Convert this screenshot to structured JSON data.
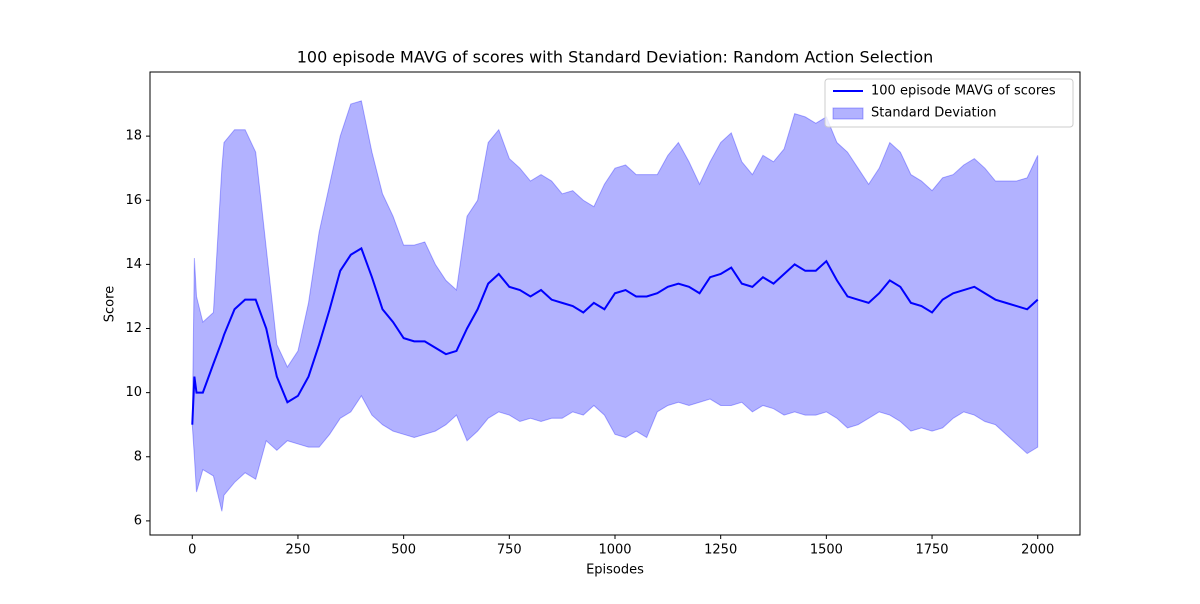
{
  "chart_data": {
    "type": "line_band",
    "title": "100 episode MAVG of scores with Standard Deviation: Random Action Selection",
    "xlabel": "Episodes",
    "ylabel": "Score",
    "x": [
      0,
      5,
      10,
      25,
      50,
      70,
      75,
      100,
      125,
      150,
      175,
      200,
      225,
      250,
      275,
      300,
      325,
      350,
      375,
      400,
      425,
      450,
      475,
      500,
      525,
      550,
      575,
      600,
      625,
      650,
      675,
      700,
      725,
      750,
      775,
      800,
      825,
      850,
      875,
      900,
      925,
      950,
      975,
      1000,
      1025,
      1050,
      1075,
      1100,
      1125,
      1150,
      1175,
      1200,
      1225,
      1250,
      1275,
      1300,
      1325,
      1350,
      1375,
      1400,
      1425,
      1450,
      1475,
      1500,
      1525,
      1550,
      1575,
      1600,
      1625,
      1650,
      1675,
      1700,
      1725,
      1750,
      1775,
      1800,
      1825,
      1850,
      1875,
      1900,
      1925,
      1950,
      1975,
      2000
    ],
    "series": [
      {
        "name": "100 episode MAVG of scores",
        "color": "#0000ff",
        "values": [
          9.0,
          10.5,
          10.0,
          10.0,
          10.9,
          11.6,
          11.8,
          12.6,
          12.9,
          12.9,
          12.0,
          10.5,
          9.7,
          9.9,
          10.5,
          11.5,
          12.6,
          13.8,
          14.3,
          14.5,
          13.6,
          12.6,
          12.2,
          11.7,
          11.6,
          11.6,
          11.4,
          11.2,
          11.3,
          12.0,
          12.6,
          13.4,
          13.7,
          13.3,
          13.2,
          13.0,
          13.2,
          12.9,
          12.8,
          12.7,
          12.5,
          12.8,
          12.6,
          13.1,
          13.2,
          13.0,
          13.0,
          13.1,
          13.3,
          13.4,
          13.3,
          13.1,
          13.6,
          13.7,
          13.9,
          13.4,
          13.3,
          13.6,
          13.4,
          13.7,
          14.0,
          13.8,
          13.8,
          14.1,
          13.5,
          13.0,
          12.9,
          12.8,
          13.1,
          13.5,
          13.3,
          12.8,
          12.7,
          12.5,
          12.9,
          13.1,
          13.2,
          13.3,
          13.1,
          12.9,
          12.8,
          12.7,
          12.6,
          12.9
        ]
      },
      {
        "name": "Standard Deviation",
        "color": "#0000ff",
        "upper": [
          9.0,
          14.2,
          13.0,
          12.2,
          12.5,
          17.0,
          17.8,
          18.2,
          18.2,
          17.5,
          14.5,
          11.5,
          10.8,
          11.3,
          12.8,
          15.0,
          16.5,
          18.0,
          19.0,
          19.1,
          17.5,
          16.2,
          15.5,
          14.6,
          14.6,
          14.7,
          14.0,
          13.5,
          13.2,
          15.5,
          16.0,
          17.8,
          18.2,
          17.3,
          17.0,
          16.6,
          16.8,
          16.6,
          16.2,
          16.3,
          16.0,
          15.8,
          16.5,
          17.0,
          17.1,
          16.8,
          16.8,
          16.8,
          17.4,
          17.8,
          17.2,
          16.5,
          17.2,
          17.8,
          18.1,
          17.2,
          16.8,
          17.4,
          17.2,
          17.6,
          18.7,
          18.6,
          18.4,
          18.6,
          17.8,
          17.5,
          17.0,
          16.5,
          17.0,
          17.8,
          17.5,
          16.8,
          16.6,
          16.3,
          16.7,
          16.8,
          17.1,
          17.3,
          17.0,
          16.6,
          16.6,
          16.6,
          16.7,
          17.4
        ],
        "lower": [
          9.0,
          8.0,
          6.9,
          7.6,
          7.4,
          6.3,
          6.8,
          7.2,
          7.5,
          7.3,
          8.5,
          8.2,
          8.5,
          8.4,
          8.3,
          8.3,
          8.7,
          9.2,
          9.4,
          9.9,
          9.3,
          9.0,
          8.8,
          8.7,
          8.6,
          8.7,
          8.8,
          9.0,
          9.3,
          8.5,
          8.8,
          9.2,
          9.4,
          9.3,
          9.1,
          9.2,
          9.1,
          9.2,
          9.2,
          9.4,
          9.3,
          9.6,
          9.3,
          8.7,
          8.6,
          8.8,
          8.6,
          9.4,
          9.6,
          9.7,
          9.6,
          9.7,
          9.8,
          9.6,
          9.6,
          9.7,
          9.4,
          9.6,
          9.5,
          9.3,
          9.4,
          9.3,
          9.3,
          9.4,
          9.2,
          8.9,
          9.0,
          9.2,
          9.4,
          9.3,
          9.1,
          8.8,
          8.9,
          8.8,
          8.9,
          9.2,
          9.4,
          9.3,
          9.1,
          9.0,
          8.7,
          8.4,
          8.1,
          8.3
        ]
      }
    ],
    "xlim": [
      -100,
      2100
    ],
    "xticks": [
      0,
      250,
      500,
      750,
      1000,
      1250,
      1500,
      1750,
      2000
    ],
    "ylim": [
      5.56,
      20.0
    ],
    "yticks": [
      6,
      8,
      10,
      12,
      14,
      16,
      18
    ],
    "grid": false,
    "legend": "upper right"
  }
}
